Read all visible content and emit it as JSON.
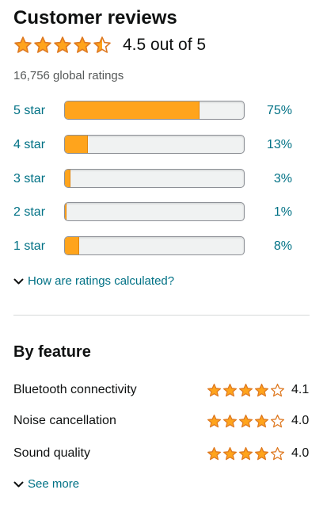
{
  "header": {
    "title": "Customer reviews",
    "rating_value": 4.5,
    "rating_text": "4.5 out of 5",
    "global_ratings": "16,756 global ratings"
  },
  "histogram": [
    {
      "label": "5 star",
      "percent_text": "75%",
      "percent": 75
    },
    {
      "label": "4 star",
      "percent_text": "13%",
      "percent": 13
    },
    {
      "label": "3 star",
      "percent_text": "3%",
      "percent": 3
    },
    {
      "label": "2 star",
      "percent_text": "1%",
      "percent": 1
    },
    {
      "label": "1 star",
      "percent_text": "8%",
      "percent": 8
    }
  ],
  "how_calculated": {
    "label": "How are ratings calculated?",
    "icon": "chevron-down-icon"
  },
  "by_feature": {
    "title": "By feature",
    "items": [
      {
        "name": "Bluetooth connectivity",
        "rating": 4.1,
        "rating_text": "4.1"
      },
      {
        "name": "Noise cancellation",
        "rating": 4.0,
        "rating_text": "4.0"
      },
      {
        "name": "Sound quality",
        "rating": 4.0,
        "rating_text": "4.0"
      }
    ],
    "see_more": "See more"
  },
  "colors": {
    "star_fill": "#ffa41c",
    "star_stroke": "#de7921",
    "link": "#007185",
    "meter_bg": "#f0f2f2",
    "meter_border": "#8d9096",
    "text": "#0f1111",
    "muted": "#565959",
    "divider": "#d5d9d9"
  }
}
